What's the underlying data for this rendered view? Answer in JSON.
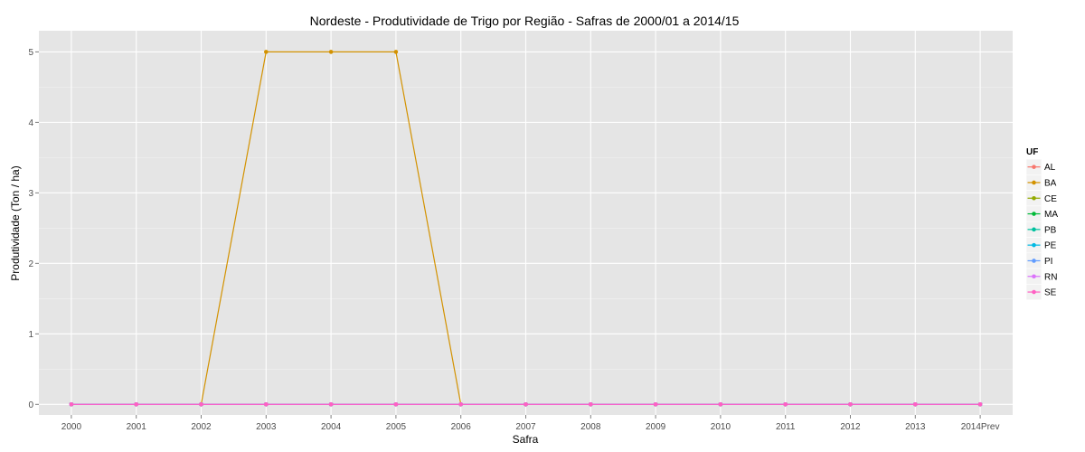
{
  "chart_data": {
    "type": "line",
    "title": "Nordeste  - Produtividade de Trigo por Região - Safras de 2000/01 a 2014/15",
    "xlabel": "Safra",
    "ylabel": "Produtividade (Ton / ha)",
    "categories": [
      "2000",
      "2001",
      "2002",
      "2003",
      "2004",
      "2005",
      "2006",
      "2007",
      "2008",
      "2009",
      "2010",
      "2011",
      "2012",
      "2013",
      "2014Prev"
    ],
    "ylim": [
      -0.15,
      5.3
    ],
    "yticks": [
      0,
      1,
      2,
      3,
      4,
      5
    ],
    "grid": true,
    "legend_title": "UF",
    "legend_position": "right",
    "series": [
      {
        "name": "AL",
        "color": "#F8766D",
        "values": [
          0,
          0,
          0,
          0,
          0,
          0,
          0,
          0,
          0,
          0,
          0,
          0,
          0,
          0,
          0
        ]
      },
      {
        "name": "BA",
        "color": "#D39200",
        "values": [
          0,
          0,
          0,
          5,
          5,
          5,
          0,
          0,
          0,
          0,
          0,
          0,
          0,
          0,
          0
        ]
      },
      {
        "name": "CE",
        "color": "#93AA00",
        "values": [
          0,
          0,
          0,
          0,
          0,
          0,
          0,
          0,
          0,
          0,
          0,
          0,
          0,
          0,
          0
        ]
      },
      {
        "name": "MA",
        "color": "#00BA38",
        "values": [
          0,
          0,
          0,
          0,
          0,
          0,
          0,
          0,
          0,
          0,
          0,
          0,
          0,
          0,
          0
        ]
      },
      {
        "name": "PB",
        "color": "#00C19F",
        "values": [
          0,
          0,
          0,
          0,
          0,
          0,
          0,
          0,
          0,
          0,
          0,
          0,
          0,
          0,
          0
        ]
      },
      {
        "name": "PE",
        "color": "#00B9E3",
        "values": [
          0,
          0,
          0,
          0,
          0,
          0,
          0,
          0,
          0,
          0,
          0,
          0,
          0,
          0,
          0
        ]
      },
      {
        "name": "PI",
        "color": "#619CFF",
        "values": [
          0,
          0,
          0,
          0,
          0,
          0,
          0,
          0,
          0,
          0,
          0,
          0,
          0,
          0,
          0
        ]
      },
      {
        "name": "RN",
        "color": "#DB72FB",
        "values": [
          0,
          0,
          0,
          0,
          0,
          0,
          0,
          0,
          0,
          0,
          0,
          0,
          0,
          0,
          0
        ]
      },
      {
        "name": "SE",
        "color": "#FF61C3",
        "values": [
          0,
          0,
          0,
          0,
          0,
          0,
          0,
          0,
          0,
          0,
          0,
          0,
          0,
          0,
          0
        ]
      }
    ],
    "colors": {
      "panel_background": "#E5E5E5",
      "grid_major": "#FFFFFF",
      "grid_minor": "#F2F2F2",
      "legend_key_background": "#F2F2F2"
    }
  }
}
